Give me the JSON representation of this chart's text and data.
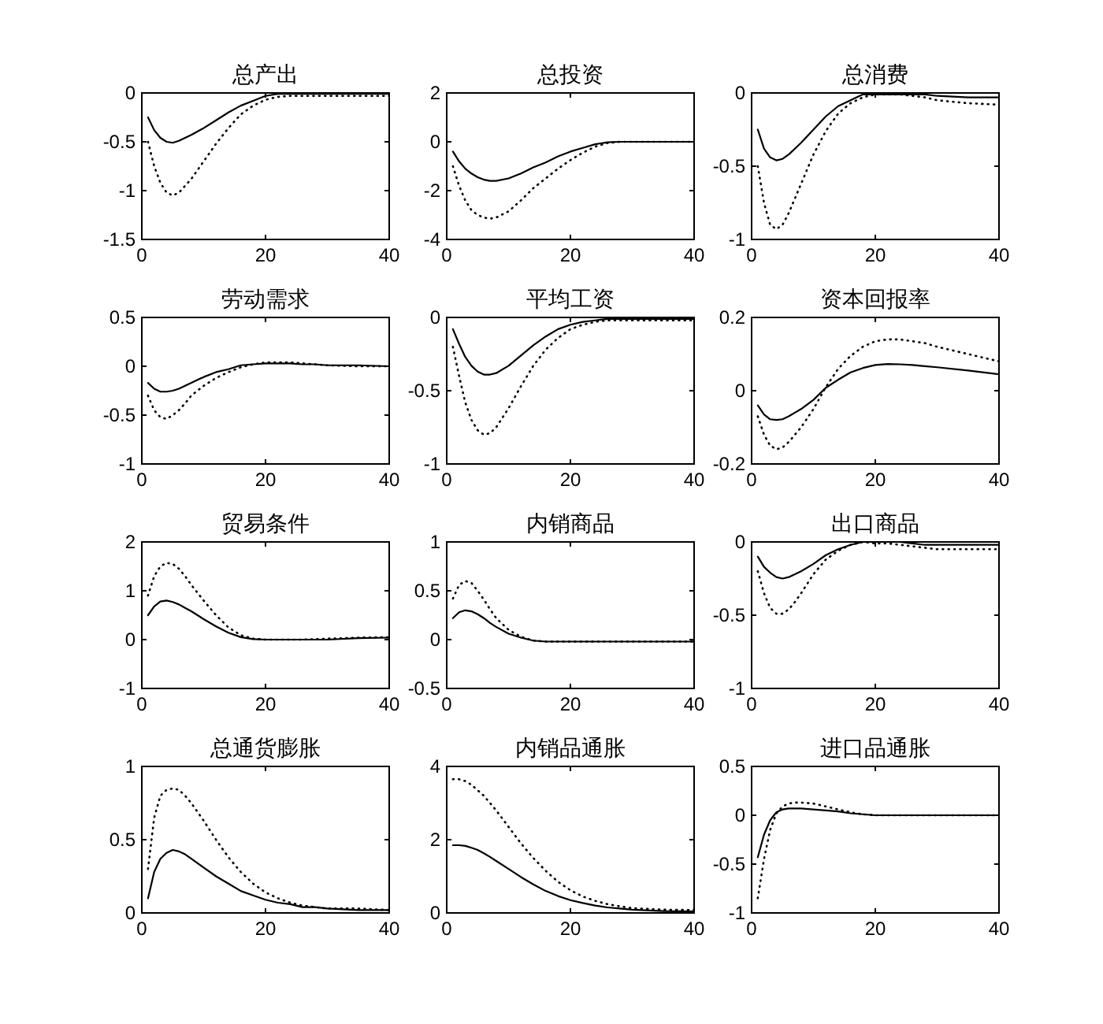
{
  "chart_data": [
    {
      "type": "line",
      "title": "总产出",
      "x": [
        1,
        2,
        3,
        4,
        5,
        6,
        7,
        8,
        10,
        12,
        14,
        16,
        18,
        20,
        22,
        24,
        26,
        28,
        30,
        35,
        40
      ],
      "xlim": [
        0,
        40
      ],
      "xticks": [
        0,
        20,
        40
      ],
      "ylim": [
        -1.5,
        0
      ],
      "yticks": [
        -1.5,
        -1,
        -0.5,
        0
      ],
      "series": [
        {
          "color": "#000000",
          "line_style": "solid",
          "values": [
            -0.25,
            -0.38,
            -0.46,
            -0.5,
            -0.51,
            -0.49,
            -0.46,
            -0.43,
            -0.36,
            -0.28,
            -0.2,
            -0.13,
            -0.08,
            -0.03,
            -0.01,
            -0.01,
            -0.01,
            -0.01,
            -0.01,
            -0.01,
            -0.01
          ]
        },
        {
          "color": "#000000",
          "line_style": "dotted",
          "values": [
            -0.5,
            -0.75,
            -0.92,
            -1.02,
            -1.05,
            -1.02,
            -0.95,
            -0.88,
            -0.7,
            -0.52,
            -0.36,
            -0.22,
            -0.13,
            -0.07,
            -0.04,
            -0.03,
            -0.03,
            -0.03,
            -0.03,
            -0.03,
            -0.03
          ]
        }
      ]
    },
    {
      "type": "line",
      "title": "总投资",
      "x": [
        1,
        2,
        3,
        4,
        5,
        6,
        7,
        8,
        10,
        12,
        14,
        16,
        18,
        20,
        22,
        24,
        26,
        28,
        30,
        35,
        40
      ],
      "xlim": [
        0,
        40
      ],
      "xticks": [
        0,
        20,
        40
      ],
      "ylim": [
        -4,
        2
      ],
      "yticks": [
        -4,
        -2,
        0,
        2
      ],
      "series": [
        {
          "color": "#000000",
          "line_style": "solid",
          "values": [
            -0.4,
            -0.8,
            -1.1,
            -1.3,
            -1.45,
            -1.55,
            -1.6,
            -1.6,
            -1.5,
            -1.3,
            -1.05,
            -0.85,
            -0.6,
            -0.4,
            -0.25,
            -0.1,
            -0.02,
            0,
            0,
            0,
            0
          ]
        },
        {
          "color": "#000000",
          "line_style": "dotted",
          "values": [
            -1,
            -1.8,
            -2.4,
            -2.8,
            -3,
            -3.1,
            -3.15,
            -3.1,
            -2.85,
            -2.4,
            -1.9,
            -1.5,
            -1.1,
            -0.75,
            -0.45,
            -0.2,
            -0.05,
            0,
            0,
            0,
            0
          ]
        }
      ]
    },
    {
      "type": "line",
      "title": "总消费",
      "x": [
        1,
        2,
        3,
        4,
        5,
        6,
        7,
        8,
        10,
        12,
        14,
        16,
        18,
        20,
        22,
        24,
        26,
        28,
        30,
        35,
        40
      ],
      "xlim": [
        0,
        40
      ],
      "xticks": [
        0,
        20,
        40
      ],
      "ylim": [
        -1,
        0
      ],
      "yticks": [
        -1,
        -0.5,
        0
      ],
      "series": [
        {
          "color": "#000000",
          "line_style": "solid",
          "values": [
            -0.25,
            -0.38,
            -0.44,
            -0.46,
            -0.45,
            -0.42,
            -0.38,
            -0.34,
            -0.25,
            -0.16,
            -0.09,
            -0.05,
            -0.01,
            -0.01,
            -0.01,
            -0.01,
            -0.01,
            -0.01,
            -0.02,
            -0.03,
            -0.03
          ]
        },
        {
          "color": "#000000",
          "line_style": "dotted",
          "values": [
            -0.5,
            -0.75,
            -0.9,
            -0.93,
            -0.9,
            -0.82,
            -0.72,
            -0.62,
            -0.42,
            -0.26,
            -0.14,
            -0.07,
            -0.03,
            -0.01,
            -0.01,
            -0.01,
            -0.02,
            -0.03,
            -0.05,
            -0.07,
            -0.08
          ]
        }
      ]
    },
    {
      "type": "line",
      "title": "劳动需求",
      "x": [
        1,
        2,
        3,
        4,
        5,
        6,
        7,
        8,
        10,
        12,
        14,
        16,
        18,
        20,
        22,
        24,
        26,
        28,
        30,
        35,
        40
      ],
      "xlim": [
        0,
        40
      ],
      "xticks": [
        0,
        20,
        40
      ],
      "ylim": [
        -1,
        0.5
      ],
      "yticks": [
        -1,
        -0.5,
        0,
        0.5
      ],
      "series": [
        {
          "color": "#000000",
          "line_style": "solid",
          "values": [
            -0.17,
            -0.23,
            -0.26,
            -0.26,
            -0.25,
            -0.23,
            -0.2,
            -0.17,
            -0.11,
            -0.06,
            -0.03,
            0.01,
            0.02,
            0.03,
            0.03,
            0.03,
            0.02,
            0.02,
            0.01,
            0.01,
            0
          ]
        },
        {
          "color": "#000000",
          "line_style": "dotted",
          "values": [
            -0.3,
            -0.45,
            -0.52,
            -0.54,
            -0.5,
            -0.45,
            -0.38,
            -0.3,
            -0.2,
            -0.12,
            -0.06,
            -0.01,
            0.02,
            0.04,
            0.04,
            0.04,
            0.03,
            0.02,
            0.01,
            0,
            0
          ]
        }
      ]
    },
    {
      "type": "line",
      "title": "平均工资",
      "x": [
        1,
        2,
        3,
        4,
        5,
        6,
        7,
        8,
        10,
        12,
        14,
        16,
        18,
        20,
        22,
        24,
        26,
        28,
        30,
        35,
        40
      ],
      "xlim": [
        0,
        40
      ],
      "xticks": [
        0,
        20,
        40
      ],
      "ylim": [
        -1,
        0
      ],
      "yticks": [
        -1,
        -0.5,
        0
      ],
      "series": [
        {
          "color": "#000000",
          "line_style": "solid",
          "values": [
            -0.08,
            -0.18,
            -0.27,
            -0.33,
            -0.37,
            -0.39,
            -0.39,
            -0.38,
            -0.33,
            -0.26,
            -0.19,
            -0.13,
            -0.08,
            -0.05,
            -0.03,
            -0.02,
            -0.01,
            -0.01,
            -0.01,
            -0.01,
            -0.01
          ]
        },
        {
          "color": "#000000",
          "line_style": "dotted",
          "values": [
            -0.2,
            -0.4,
            -0.58,
            -0.7,
            -0.77,
            -0.8,
            -0.79,
            -0.75,
            -0.62,
            -0.47,
            -0.33,
            -0.22,
            -0.14,
            -0.08,
            -0.05,
            -0.03,
            -0.02,
            -0.02,
            -0.02,
            -0.02,
            -0.02
          ]
        }
      ]
    },
    {
      "type": "line",
      "title": "资本回报率",
      "x": [
        1,
        2,
        3,
        4,
        5,
        6,
        7,
        8,
        10,
        12,
        14,
        16,
        18,
        20,
        22,
        24,
        26,
        28,
        30,
        35,
        40
      ],
      "xlim": [
        0,
        40
      ],
      "xticks": [
        0,
        20,
        40
      ],
      "ylim": [
        -0.2,
        0.2
      ],
      "yticks": [
        -0.2,
        0,
        0.2
      ],
      "series": [
        {
          "color": "#000000",
          "line_style": "solid",
          "values": [
            -0.04,
            -0.065,
            -0.078,
            -0.08,
            -0.078,
            -0.07,
            -0.06,
            -0.05,
            -0.025,
            0.008,
            0.03,
            0.05,
            0.062,
            0.07,
            0.073,
            0.072,
            0.07,
            0.067,
            0.064,
            0.055,
            0.045
          ]
        },
        {
          "color": "#000000",
          "line_style": "dotted",
          "values": [
            -0.07,
            -0.12,
            -0.15,
            -0.16,
            -0.155,
            -0.14,
            -0.12,
            -0.1,
            -0.05,
            0.01,
            0.06,
            0.095,
            0.12,
            0.135,
            0.14,
            0.14,
            0.135,
            0.13,
            0.12,
            0.1,
            0.08
          ]
        }
      ]
    },
    {
      "type": "line",
      "title": "贸易条件",
      "x": [
        1,
        2,
        3,
        4,
        5,
        6,
        7,
        8,
        10,
        12,
        14,
        16,
        18,
        20,
        22,
        24,
        26,
        28,
        30,
        35,
        40
      ],
      "xlim": [
        0,
        40
      ],
      "xticks": [
        0,
        20,
        40
      ],
      "ylim": [
        -1,
        2
      ],
      "yticks": [
        -1,
        0,
        1,
        2
      ],
      "series": [
        {
          "color": "#000000",
          "line_style": "solid",
          "values": [
            0.5,
            0.68,
            0.78,
            0.8,
            0.77,
            0.72,
            0.65,
            0.58,
            0.42,
            0.27,
            0.14,
            0.05,
            0.01,
            0,
            0,
            0,
            0,
            0,
            0,
            0.03,
            0.04
          ]
        },
        {
          "color": "#000000",
          "line_style": "dotted",
          "values": [
            0.9,
            1.3,
            1.5,
            1.57,
            1.55,
            1.45,
            1.3,
            1.12,
            0.8,
            0.5,
            0.25,
            0.09,
            0.02,
            0,
            0,
            0,
            0,
            0.01,
            0.02,
            0.04,
            0.05
          ]
        }
      ]
    },
    {
      "type": "line",
      "title": "内销商品",
      "x": [
        1,
        2,
        3,
        4,
        5,
        6,
        7,
        8,
        10,
        12,
        14,
        16,
        18,
        20,
        22,
        24,
        26,
        28,
        30,
        35,
        40
      ],
      "xlim": [
        0,
        40
      ],
      "xticks": [
        0,
        20,
        40
      ],
      "ylim": [
        -0.5,
        1
      ],
      "yticks": [
        -0.5,
        0,
        0.5,
        1
      ],
      "series": [
        {
          "color": "#000000",
          "line_style": "solid",
          "values": [
            0.22,
            0.28,
            0.3,
            0.29,
            0.26,
            0.22,
            0.17,
            0.13,
            0.06,
            0.02,
            -0.01,
            -0.02,
            -0.02,
            -0.02,
            -0.02,
            -0.02,
            -0.02,
            -0.02,
            -0.02,
            -0.02,
            -0.02
          ]
        },
        {
          "color": "#000000",
          "line_style": "dotted",
          "values": [
            0.42,
            0.56,
            0.6,
            0.58,
            0.5,
            0.41,
            0.31,
            0.22,
            0.1,
            0.03,
            -0.01,
            -0.02,
            -0.02,
            -0.02,
            -0.02,
            -0.02,
            -0.02,
            -0.02,
            -0.02,
            -0.02,
            -0.02
          ]
        }
      ]
    },
    {
      "type": "line",
      "title": "出口商品",
      "x": [
        1,
        2,
        3,
        4,
        5,
        6,
        7,
        8,
        10,
        12,
        14,
        16,
        18,
        20,
        22,
        24,
        26,
        28,
        30,
        35,
        40
      ],
      "xlim": [
        0,
        40
      ],
      "xticks": [
        0,
        20,
        40
      ],
      "ylim": [
        -1,
        0
      ],
      "yticks": [
        -1,
        -0.5,
        0
      ],
      "series": [
        {
          "color": "#000000",
          "line_style": "solid",
          "values": [
            -0.1,
            -0.17,
            -0.21,
            -0.24,
            -0.25,
            -0.24,
            -0.22,
            -0.2,
            -0.15,
            -0.09,
            -0.05,
            -0.02,
            0,
            0,
            0,
            0,
            -0.01,
            -0.02,
            -0.02,
            -0.02,
            -0.02
          ]
        },
        {
          "color": "#000000",
          "line_style": "dotted",
          "values": [
            -0.2,
            -0.35,
            -0.45,
            -0.49,
            -0.49,
            -0.46,
            -0.41,
            -0.35,
            -0.22,
            -0.12,
            -0.06,
            -0.02,
            0,
            -0.01,
            -0.01,
            -0.02,
            -0.03,
            -0.04,
            -0.05,
            -0.05,
            -0.05
          ]
        }
      ]
    },
    {
      "type": "line",
      "title": "总通货膨胀",
      "x": [
        1,
        2,
        3,
        4,
        5,
        6,
        7,
        8,
        10,
        12,
        14,
        16,
        18,
        20,
        22,
        24,
        26,
        28,
        30,
        35,
        40
      ],
      "xlim": [
        0,
        40
      ],
      "xticks": [
        0,
        20,
        40
      ],
      "ylim": [
        0,
        1
      ],
      "yticks": [
        0,
        0.5,
        1
      ],
      "series": [
        {
          "color": "#000000",
          "line_style": "solid",
          "values": [
            0.1,
            0.28,
            0.37,
            0.41,
            0.43,
            0.42,
            0.4,
            0.37,
            0.31,
            0.25,
            0.2,
            0.15,
            0.12,
            0.09,
            0.07,
            0.06,
            0.04,
            0.04,
            0.03,
            0.02,
            0.02
          ]
        },
        {
          "color": "#000000",
          "line_style": "dotted",
          "values": [
            0.3,
            0.65,
            0.8,
            0.84,
            0.85,
            0.84,
            0.8,
            0.75,
            0.63,
            0.5,
            0.38,
            0.28,
            0.2,
            0.14,
            0.1,
            0.07,
            0.05,
            0.04,
            0.03,
            0.03,
            0.02
          ]
        }
      ]
    },
    {
      "type": "line",
      "title": "内销品通胀",
      "x": [
        1,
        2,
        3,
        4,
        5,
        6,
        7,
        8,
        10,
        12,
        14,
        16,
        18,
        20,
        22,
        24,
        26,
        28,
        30,
        35,
        40
      ],
      "xlim": [
        0,
        40
      ],
      "xticks": [
        0,
        20,
        40
      ],
      "ylim": [
        0,
        4
      ],
      "yticks": [
        0,
        2,
        4
      ],
      "series": [
        {
          "color": "#000000",
          "line_style": "solid",
          "values": [
            1.85,
            1.85,
            1.83,
            1.78,
            1.72,
            1.63,
            1.53,
            1.42,
            1.2,
            0.98,
            0.78,
            0.6,
            0.46,
            0.35,
            0.27,
            0.2,
            0.15,
            0.12,
            0.09,
            0.05,
            0.04
          ]
        },
        {
          "color": "#000000",
          "line_style": "dotted",
          "values": [
            3.65,
            3.65,
            3.6,
            3.5,
            3.35,
            3.2,
            3,
            2.8,
            2.35,
            1.9,
            1.5,
            1.15,
            0.85,
            0.62,
            0.45,
            0.33,
            0.24,
            0.18,
            0.13,
            0.09,
            0.08
          ]
        }
      ]
    },
    {
      "type": "line",
      "title": "进口品通胀",
      "x": [
        1,
        2,
        3,
        4,
        5,
        6,
        7,
        8,
        10,
        12,
        14,
        16,
        18,
        20,
        22,
        24,
        26,
        28,
        30,
        35,
        40
      ],
      "xlim": [
        0,
        40
      ],
      "xticks": [
        0,
        20,
        40
      ],
      "ylim": [
        -1,
        0.5
      ],
      "yticks": [
        -1,
        -0.5,
        0,
        0.5
      ],
      "series": [
        {
          "color": "#000000",
          "line_style": "solid",
          "values": [
            -0.43,
            -0.2,
            -0.05,
            0.03,
            0.06,
            0.07,
            0.07,
            0.07,
            0.06,
            0.05,
            0.04,
            0.02,
            0.01,
            0,
            0,
            0,
            0,
            0,
            0,
            0,
            0
          ]
        },
        {
          "color": "#000000",
          "line_style": "dotted",
          "values": [
            -0.85,
            -0.45,
            -0.15,
            0.02,
            0.09,
            0.12,
            0.13,
            0.13,
            0.12,
            0.09,
            0.06,
            0.03,
            0.01,
            0,
            0,
            0,
            0,
            0,
            0,
            0,
            0
          ]
        }
      ]
    }
  ]
}
